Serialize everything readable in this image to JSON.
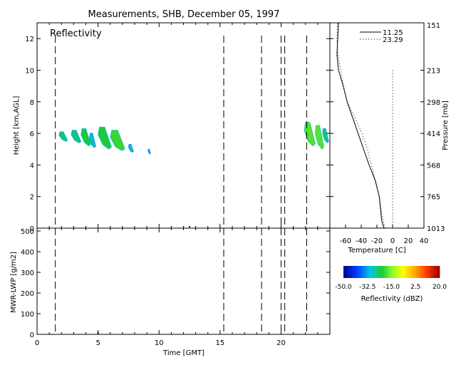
{
  "title": "Measurements, SHB, December 05, 1997",
  "chart_data": [
    {
      "type": "heatmap",
      "panel": "reflectivity",
      "label": "Reflectivity",
      "xlabel": "Time [GMT]",
      "ylabel": "Height [km,AGL]",
      "xlim": [
        0,
        24
      ],
      "ylim": [
        0,
        13
      ],
      "xticks": [
        "0",
        "5",
        "10",
        "15",
        "20"
      ],
      "yticks": [
        "0",
        "2",
        "4",
        "6",
        "8",
        "10",
        "12"
      ],
      "sounding_times": [
        1.5,
        15.3,
        18.4,
        20.0,
        20.3,
        22.1
      ],
      "echoes": [
        {
          "t0": 1.8,
          "t1": 2.5,
          "h0": 5.5,
          "h1": 6.1,
          "dbz": -25
        },
        {
          "t0": 2.8,
          "t1": 3.6,
          "h0": 5.4,
          "h1": 6.2,
          "dbz": -25
        },
        {
          "t0": 3.6,
          "t1": 4.4,
          "h0": 5.2,
          "h1": 6.3,
          "dbz": -22
        },
        {
          "t0": 4.3,
          "t1": 4.8,
          "h0": 5.1,
          "h1": 6.0,
          "dbz": -28
        },
        {
          "t0": 5.0,
          "t1": 6.1,
          "h0": 5.0,
          "h1": 6.4,
          "dbz": -22
        },
        {
          "t0": 6.0,
          "t1": 7.2,
          "h0": 4.9,
          "h1": 6.2,
          "dbz": -20
        },
        {
          "t0": 7.5,
          "t1": 7.9,
          "h0": 4.8,
          "h1": 5.3,
          "dbz": -28
        },
        {
          "t0": 9.1,
          "t1": 9.3,
          "h0": 4.7,
          "h1": 5.0,
          "dbz": -30
        },
        {
          "t0": 21.9,
          "t1": 22.8,
          "h0": 5.2,
          "h1": 6.7,
          "dbz": -18
        },
        {
          "t0": 22.8,
          "t1": 23.5,
          "h0": 5.0,
          "h1": 6.5,
          "dbz": -18
        },
        {
          "t0": 23.4,
          "t1": 23.9,
          "h0": 5.4,
          "h1": 6.3,
          "dbz": -25
        }
      ]
    },
    {
      "type": "line",
      "panel": "lwp",
      "xlabel": "Time [GMT]",
      "ylabel": "MWR-LWP [g/m2]",
      "xlim": [
        0,
        24
      ],
      "ylim": [
        0,
        500
      ],
      "xticks": [
        "0",
        "5",
        "10",
        "15",
        "20"
      ],
      "yticks": [
        "0",
        "100",
        "200",
        "300",
        "400",
        "500"
      ],
      "sounding_times": [
        1.5,
        15.3,
        18.4,
        20.0,
        20.3,
        22.1
      ],
      "x": [
        5.0
      ],
      "values": [
        0
      ]
    },
    {
      "type": "line",
      "panel": "sounding",
      "xlabel": "Temperature [C]",
      "ylabel": "Pressure [mb]",
      "xlim": [
        -80,
        40
      ],
      "xticks": [
        "-60",
        "-40",
        "-20",
        "0",
        "20",
        "40"
      ],
      "pressure_ticks": [
        "1013",
        "765",
        "568",
        "414",
        "298",
        "213",
        "151"
      ],
      "height_ticks": [
        "0",
        "2",
        "4",
        "6",
        "8",
        "10",
        "12"
      ],
      "zero_line": 0,
      "series": [
        {
          "name": "11.25",
          "style": "solid",
          "height": [
            0,
            0.5,
            1,
            2,
            3,
            4,
            5,
            6,
            7,
            8,
            9,
            10,
            11,
            12,
            13
          ],
          "values": [
            -11,
            -14,
            -15,
            -17,
            -22,
            -30,
            -37,
            -44,
            -51,
            -58,
            -63,
            -69,
            -71,
            -70,
            -69
          ]
        },
        {
          "name": "23.29",
          "style": "dotted",
          "height": [
            0,
            0.5,
            1,
            2,
            3,
            4,
            5,
            6,
            7,
            8,
            9,
            10,
            11,
            12,
            13
          ],
          "values": [
            -10,
            -12,
            -14,
            -17,
            -22,
            -27,
            -32,
            -39,
            -48,
            -58,
            -63,
            -66,
            -70,
            -71,
            -70
          ]
        }
      ]
    },
    {
      "type": "heatmap",
      "panel": "colorbar",
      "label": "Reflectivity (dBZ)",
      "range": [
        -50,
        20
      ],
      "ticks": [
        "-50.0",
        "-32.5",
        "-15.0",
        "2.5",
        "20.0"
      ]
    }
  ]
}
